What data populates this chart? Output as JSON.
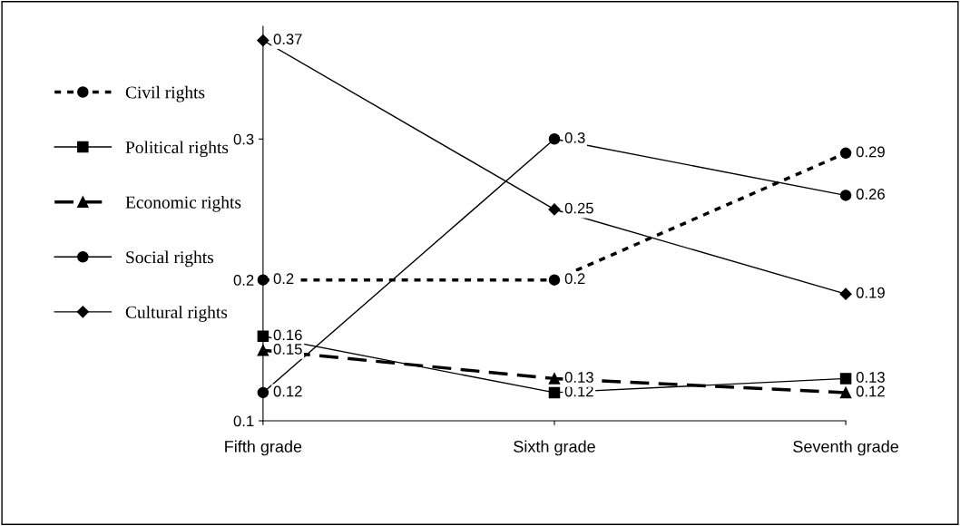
{
  "chart_data": {
    "type": "line",
    "categories": [
      "Fifth grade",
      "Sixth grade",
      "Seventh grade"
    ],
    "series": [
      {
        "name": "Civil rights",
        "color": "#000000",
        "values": [
          0.2,
          0.2,
          0.29
        ],
        "marker": "circle",
        "line_style": "dotted"
      },
      {
        "name": "Political rights",
        "color": "#000000",
        "values": [
          0.16,
          0.12,
          0.13
        ],
        "marker": "square",
        "line_style": "solid"
      },
      {
        "name": "Economic rights",
        "color": "#000000",
        "values": [
          0.15,
          0.13,
          0.12
        ],
        "marker": "triangle",
        "line_style": "dashed"
      },
      {
        "name": "Social rights",
        "color": "#000000",
        "values": [
          0.12,
          0.3,
          0.26
        ],
        "marker": "circle",
        "line_style": "solid"
      },
      {
        "name": "Cultural rights",
        "color": "#000000",
        "values": [
          0.37,
          0.25,
          0.19
        ],
        "marker": "diamond",
        "line_style": "solid"
      }
    ],
    "ylim": [
      0.1,
      0.38
    ],
    "yticks": [
      0.1,
      0.2,
      0.3
    ],
    "data_labels": true,
    "legend": "left",
    "grid": false
  }
}
